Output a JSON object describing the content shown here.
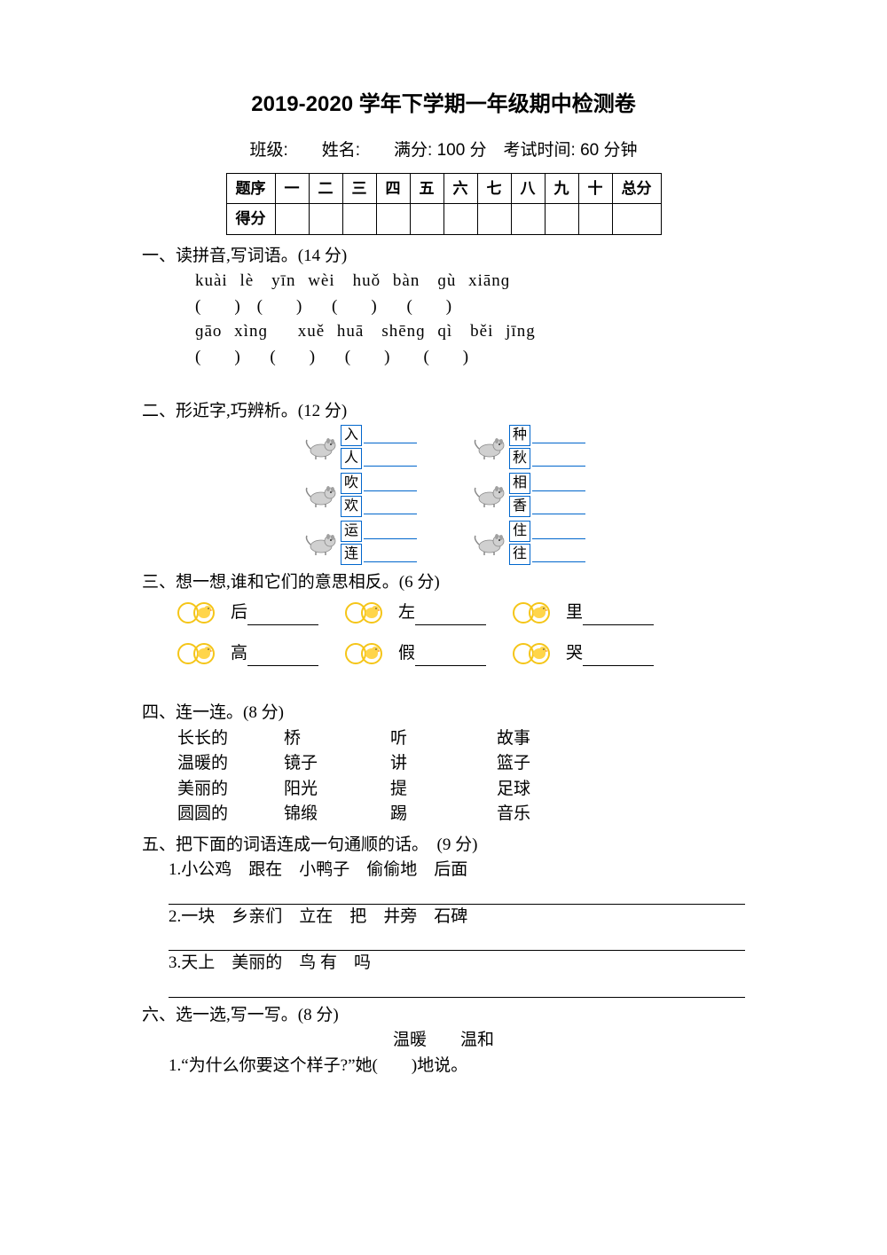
{
  "title": "2019-2020 学年下学期一年级期中检测卷",
  "info": "班级:　　姓名:　　满分: 100 分　考试时间: 60 分钟",
  "table": {
    "header_label": "题序",
    "score_label": "得分",
    "cols": [
      "一",
      "二",
      "三",
      "四",
      "五",
      "六",
      "七",
      "八",
      "九",
      "十",
      "总分"
    ]
  },
  "q1": {
    "title": "一、读拼音,写词语。(14 分)",
    "row1_pinyin": "kuài lè　yīn wèi　huǒ bàn　ɡù xiānɡ",
    "row1_paren": "(　　)　(　　)　 (　　)　 (　　)",
    "row2_pinyin": "ɡāo xìnɡ　 xuě huā　shēnɡ qì　běi jīng",
    "row2_paren": "(　　)　 (　　)　 (　　)　　(　　)"
  },
  "q2": {
    "title": "二、形近字,巧辨析。(12 分)",
    "pairs": [
      [
        [
          "入",
          "人"
        ],
        [
          "种",
          "秋"
        ]
      ],
      [
        [
          "吹",
          "欢"
        ],
        [
          "相",
          "香"
        ]
      ],
      [
        [
          "运",
          "连"
        ],
        [
          "住",
          "往"
        ]
      ]
    ]
  },
  "q3": {
    "title": "三、想一想,谁和它们的意思相反。(6 分)",
    "rows": [
      [
        "后",
        "左",
        "里"
      ],
      [
        "高",
        "假",
        "哭"
      ]
    ]
  },
  "q4": {
    "title": "四、连一连。(8 分)",
    "col1": [
      "长长的",
      "温暖的",
      "美丽的",
      "圆圆的"
    ],
    "col2": [
      "桥",
      "镜子",
      "阳光",
      "锦缎"
    ],
    "col3": [
      "听",
      "讲",
      "提",
      "踢"
    ],
    "col4": [
      "故事",
      "篮子",
      "足球",
      "音乐"
    ]
  },
  "q5": {
    "title": "五、把下面的词语连成一句通顺的话。　(9 分)",
    "items": [
      "1.小公鸡　跟在　小鸭子　偷偷地　后面",
      "2.一块　乡亲们　立在　把　井旁　石碑",
      "3.天上　美丽的　鸟 有　吗"
    ]
  },
  "q6": {
    "title": "六、选一选,写一写。(8 分)",
    "choices": "温暖　　温和",
    "line1": "1.“为什么你要这个样子?”她(　　)地说。"
  },
  "colors": {
    "box_border": "#0066cc",
    "text": "#000000",
    "bg": "#ffffff"
  }
}
